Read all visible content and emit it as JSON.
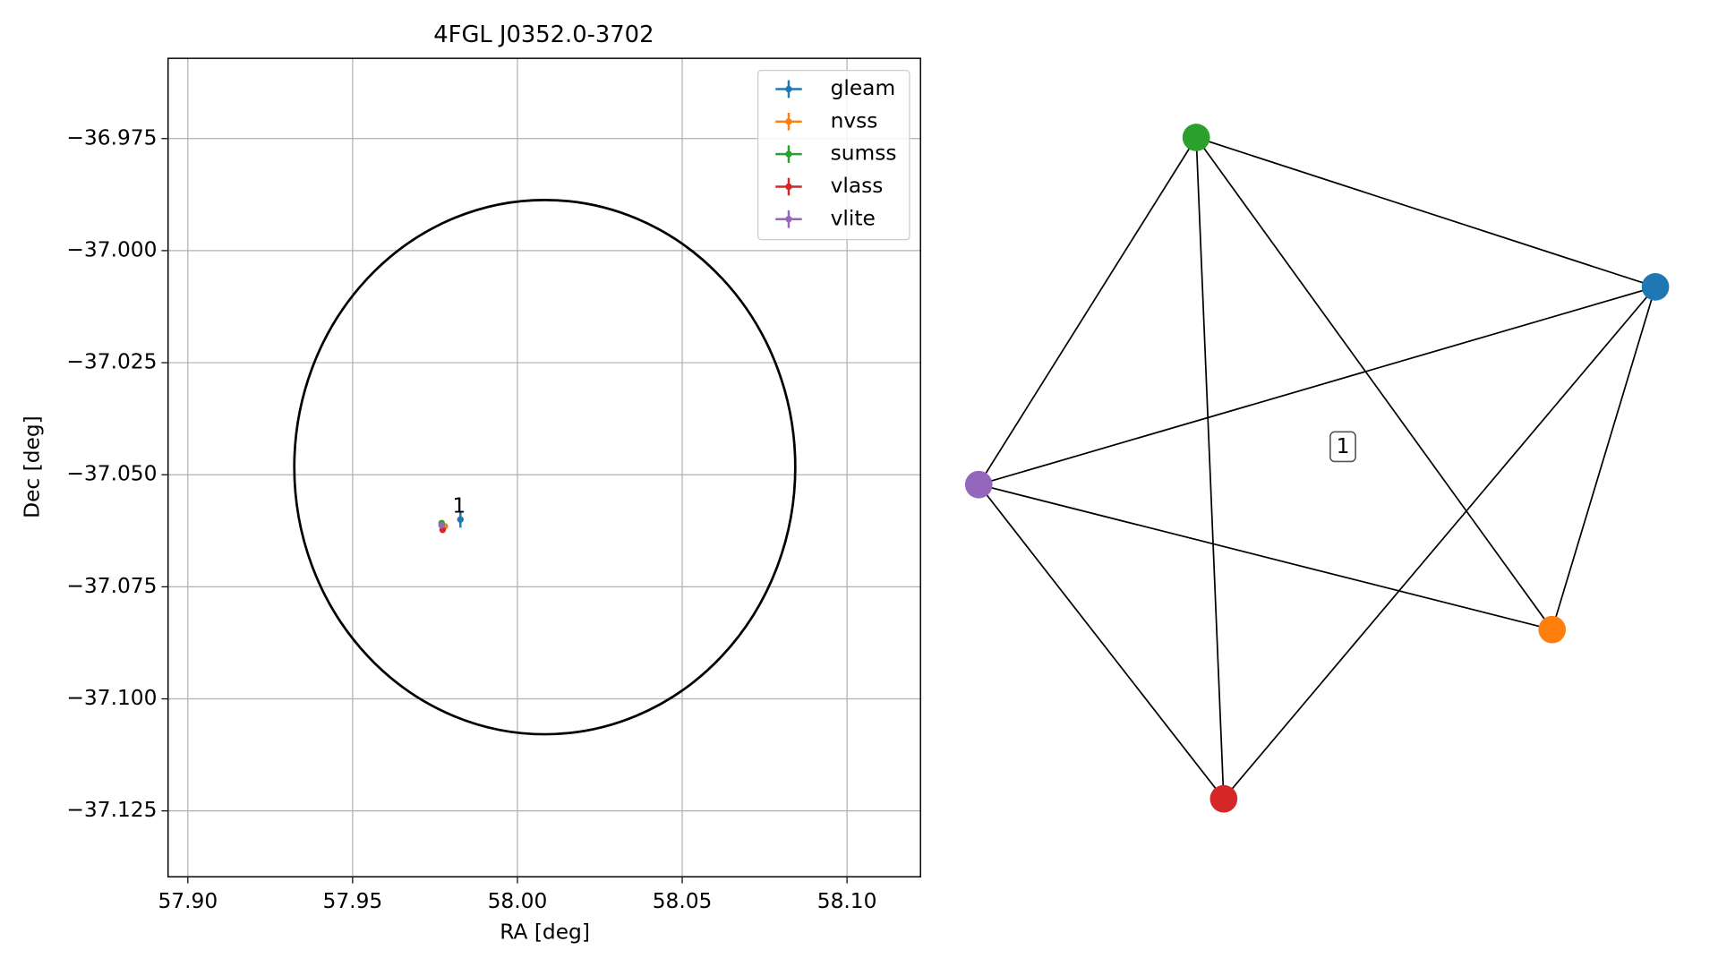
{
  "chart_data": [
    {
      "type": "scatter",
      "title": "4FGL J0352.0-3702",
      "x_label": "RA [deg]",
      "y_label": "Dec [deg]",
      "xlim": [
        57.894,
        58.1223
      ],
      "ylim": [
        -37.1397,
        -36.9571
      ],
      "xticks": [
        {
          "value": 57.9,
          "label": "57.90"
        },
        {
          "value": 57.95,
          "label": "57.95"
        },
        {
          "value": 58.0,
          "label": "58.00"
        },
        {
          "value": 58.05,
          "label": "58.05"
        },
        {
          "value": 58.1,
          "label": "58.10"
        }
      ],
      "yticks": [
        {
          "value": -36.975,
          "label": "−36.975"
        },
        {
          "value": -37.0,
          "label": "−37.000"
        },
        {
          "value": -37.025,
          "label": "−37.025"
        },
        {
          "value": -37.05,
          "label": "−37.050"
        },
        {
          "value": -37.075,
          "label": "−37.075"
        },
        {
          "value": -37.1,
          "label": "−37.100"
        },
        {
          "value": -37.125,
          "label": "−37.125"
        }
      ],
      "grid": true,
      "legend": "upper right",
      "series": [
        {
          "name": "gleam",
          "color": "#1f77b4",
          "x": [
            57.9827
          ],
          "values": [
            -37.06
          ],
          "xerr": [
            0.0008
          ],
          "yerr": [
            0.0018
          ]
        },
        {
          "name": "nvss",
          "color": "#ff7f0e",
          "x": [
            57.978
          ],
          "values": [
            -37.0615
          ],
          "xerr": [
            0.0003
          ],
          "yerr": [
            0.0003
          ]
        },
        {
          "name": "sumss",
          "color": "#2ca02c",
          "x": [
            57.977
          ],
          "values": [
            -37.0608
          ],
          "xerr": [
            0.0003
          ],
          "yerr": [
            0.0004
          ]
        },
        {
          "name": "vlass",
          "color": "#d62728",
          "x": [
            57.9773
          ],
          "values": [
            -37.0623
          ],
          "xerr": [
            0.0001
          ],
          "yerr": [
            0.0001
          ]
        },
        {
          "name": "vlite",
          "color": "#9467bd",
          "x": [
            57.977
          ],
          "values": [
            -37.0613
          ],
          "xerr": [
            0.0003
          ],
          "yerr": [
            0.0004
          ]
        }
      ],
      "ellipse": {
        "center_ra": 58.0083,
        "center_dec": -37.0483,
        "ra_radius": 0.076,
        "dec_radius": 0.0596,
        "color": "#000000"
      },
      "annotations": [
        {
          "text": "1",
          "x": 57.9823,
          "y": -37.0571
        }
      ]
    },
    {
      "type": "network",
      "label": "1",
      "edge_color": "#000000",
      "nodes": [
        {
          "color": "#1f77b4"
        },
        {
          "color": "#ff7f0e"
        },
        {
          "color": "#2ca02c"
        },
        {
          "color": "#d62728"
        },
        {
          "color": "#9467bd"
        }
      ],
      "edges": [
        [
          0,
          1
        ],
        [
          0,
          2
        ],
        [
          0,
          3
        ],
        [
          0,
          4
        ],
        [
          1,
          2
        ],
        [
          1,
          4
        ],
        [
          2,
          3
        ],
        [
          2,
          4
        ],
        [
          3,
          4
        ]
      ]
    }
  ]
}
